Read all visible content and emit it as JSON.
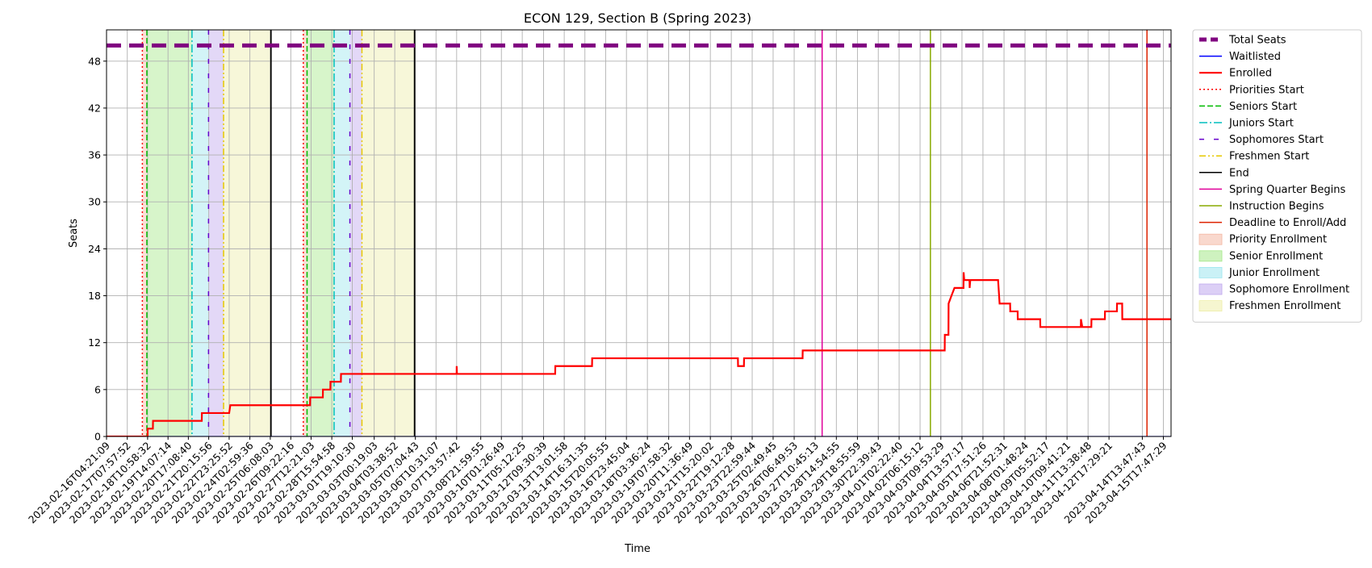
{
  "chart_data": {
    "type": "line",
    "title": "ECON 129, Section B (Spring 2023)",
    "xlabel": "Time",
    "ylabel": "Seats",
    "ylim": [
      0,
      52
    ],
    "yticks": [
      0,
      6,
      12,
      18,
      24,
      30,
      36,
      42,
      48
    ],
    "grid": true,
    "legend_position": "outside-right",
    "x_start": "2023-02-16T04:21:09",
    "x_end": "2023-04-16T04:00:00",
    "xticks": [
      "2023-02-16T04:21:09",
      "2023-02-17T07:57:52",
      "2023-02-18T10:58:32",
      "2023-02-19T14:07:14",
      "2023-02-20T17:08:40",
      "2023-02-21T20:15:56",
      "2023-02-22T23:25:52",
      "2023-02-24T02:59:36",
      "2023-02-25T06:08:03",
      "2023-02-26T09:22:16",
      "2023-02-27T12:21:03",
      "2023-02-28T15:54:58",
      "2023-03-01T19:10:30",
      "2023-03-03T00:19:03",
      "2023-03-04T03:38:52",
      "2023-03-05T07:04:43",
      "2023-03-06T10:31:07",
      "2023-03-07T13:57:42",
      "2023-03-08T21:59:55",
      "2023-03-10T01:26:49",
      "2023-03-11T05:12:25",
      "2023-03-12T09:30:39",
      "2023-03-13T13:01:58",
      "2023-03-14T16:31:35",
      "2023-03-15T20:05:55",
      "2023-03-16T23:45:04",
      "2023-03-18T03:36:24",
      "2023-03-19T07:58:32",
      "2023-03-20T11:36:49",
      "2023-03-21T15:20:02",
      "2023-03-22T19:12:28",
      "2023-03-23T22:59:44",
      "2023-03-25T02:49:45",
      "2023-03-26T06:49:53",
      "2023-03-27T10:45:13",
      "2023-03-28T14:54:55",
      "2023-03-29T18:55:59",
      "2023-03-30T22:39:43",
      "2023-04-01T02:22:40",
      "2023-04-02T06:15:12",
      "2023-04-03T09:53:29",
      "2023-04-04T13:57:17",
      "2023-04-05T17:51:26",
      "2023-04-06T21:52:31",
      "2023-04-08T01:48:24",
      "2023-04-09T05:52:17",
      "2023-04-10T09:41:21",
      "2023-04-11T13:38:48",
      "2023-04-12T17:29:21",
      "2023-04-14T13:47:43",
      "2023-04-15T17:47:29"
    ],
    "series": [
      {
        "name": "Total Seats",
        "color": "#800080",
        "style": "thick-dashed",
        "points": [
          [
            "2023-02-16T04:21:09",
            50
          ],
          [
            "2023-04-16T04:00:00",
            50
          ]
        ]
      },
      {
        "name": "Waitlisted",
        "color": "#0000ff",
        "style": "solid",
        "points": [
          [
            "2023-02-16T04:21:09",
            0
          ],
          [
            "2023-04-16T04:00:00",
            0
          ]
        ]
      },
      {
        "name": "Enrolled",
        "color": "#ff0000",
        "style": "solid-thick",
        "points": [
          [
            "2023-02-16T04:21:09",
            0
          ],
          [
            "2023-02-18T10:58:32",
            0
          ],
          [
            "2023-02-18T11:00:00",
            1
          ],
          [
            "2023-02-18T18:00:00",
            1
          ],
          [
            "2023-02-18T18:10:00",
            2
          ],
          [
            "2023-02-21T11:00:00",
            2
          ],
          [
            "2023-02-21T11:10:00",
            3
          ],
          [
            "2023-02-22T23:25:52",
            3
          ],
          [
            "2023-02-23T01:00:00",
            4
          ],
          [
            "2023-02-27T11:00:00",
            4
          ],
          [
            "2023-02-27T11:10:00",
            5
          ],
          [
            "2023-02-28T04:00:00",
            5
          ],
          [
            "2023-02-28T04:10:00",
            6
          ],
          [
            "2023-02-28T14:00:00",
            6
          ],
          [
            "2023-02-28T14:10:00",
            7
          ],
          [
            "2023-03-01T04:00:00",
            7
          ],
          [
            "2023-03-01T04:10:00",
            8
          ],
          [
            "2023-03-07T13:57:42",
            8
          ],
          [
            "2023-03-07T14:00:00",
            9
          ],
          [
            "2023-03-07T14:20:00",
            8
          ],
          [
            "2023-03-13T01:00:00",
            8
          ],
          [
            "2023-03-13T01:10:00",
            9
          ],
          [
            "2023-03-15T02:00:00",
            9
          ],
          [
            "2023-03-15T02:10:00",
            10
          ],
          [
            "2023-03-23T04:00:00",
            10
          ],
          [
            "2023-03-23T04:10:00",
            9
          ],
          [
            "2023-03-23T12:00:00",
            9
          ],
          [
            "2023-03-23T12:10:00",
            10
          ],
          [
            "2023-03-26T18:00:00",
            10
          ],
          [
            "2023-03-26T18:10:00",
            11
          ],
          [
            "2023-04-03T15:00:00",
            11
          ],
          [
            "2023-04-03T15:10:00",
            13
          ],
          [
            "2023-04-03T20:00:00",
            13
          ],
          [
            "2023-04-03T20:10:00",
            17
          ],
          [
            "2023-04-04T00:00:00",
            18
          ],
          [
            "2023-04-04T04:00:00",
            19
          ],
          [
            "2023-04-04T16:00:00",
            19
          ],
          [
            "2023-04-04T16:10:00",
            21
          ],
          [
            "2023-04-04T17:00:00",
            20
          ],
          [
            "2023-04-05T00:00:00",
            20
          ],
          [
            "2023-04-05T00:10:00",
            19
          ],
          [
            "2023-04-05T01:00:00",
            20
          ],
          [
            "2023-04-06T14:00:00",
            20
          ],
          [
            "2023-04-06T16:00:00",
            17
          ],
          [
            "2023-04-07T06:00:00",
            17
          ],
          [
            "2023-04-07T06:10:00",
            16
          ],
          [
            "2023-04-07T16:00:00",
            16
          ],
          [
            "2023-04-07T16:10:00",
            15
          ],
          [
            "2023-04-08T22:00:00",
            15
          ],
          [
            "2023-04-08T22:10:00",
            14
          ],
          [
            "2023-04-11T04:00:00",
            14
          ],
          [
            "2023-04-11T04:10:00",
            15
          ],
          [
            "2023-04-11T06:00:00",
            14
          ],
          [
            "2023-04-11T18:00:00",
            14
          ],
          [
            "2023-04-11T18:10:00",
            15
          ],
          [
            "2023-04-12T12:00:00",
            15
          ],
          [
            "2023-04-12T12:10:00",
            16
          ],
          [
            "2023-04-13T04:00:00",
            16
          ],
          [
            "2023-04-13T04:10:00",
            17
          ],
          [
            "2023-04-13T11:00:00",
            17
          ],
          [
            "2023-04-13T11:10:00",
            15
          ],
          [
            "2023-04-16T04:00:00",
            15
          ]
        ]
      }
    ],
    "event_lines": [
      {
        "name": "Priorities Start",
        "color": "#ff0000",
        "style": "dotted",
        "times": [
          "2023-02-18T04:00:00",
          "2023-02-27T02:00:00"
        ]
      },
      {
        "name": "Seniors Start",
        "color": "#00bb00",
        "style": "dashed",
        "times": [
          "2023-02-18T10:00:00",
          "2023-02-27T07:00:00"
        ]
      },
      {
        "name": "Juniors Start",
        "color": "#00bfbf",
        "style": "dashdot",
        "times": [
          "2023-02-20T22:00:00",
          "2023-02-28T19:00:00"
        ]
      },
      {
        "name": "Sophomores Start",
        "color": "#6600cc",
        "style": "loosely-dashed",
        "times": [
          "2023-02-21T20:00:00",
          "2023-03-01T16:00:00"
        ]
      },
      {
        "name": "Freshmen Start",
        "color": "#e6c800",
        "style": "dashdotdot",
        "times": [
          "2023-02-22T16:00:00",
          "2023-03-02T08:00:00"
        ]
      },
      {
        "name": "End",
        "color": "#000000",
        "style": "solid",
        "times": [
          "2023-02-25T07:00:00",
          "2023-03-05T06:00:00"
        ]
      },
      {
        "name": "Spring Quarter Begins",
        "color": "#e0009a",
        "style": "solid",
        "times": [
          "2023-03-27T20:00:00"
        ]
      },
      {
        "name": "Instruction Begins",
        "color": "#88aa00",
        "style": "solid",
        "times": [
          "2023-04-02T20:00:00"
        ]
      },
      {
        "name": "Deadline to Enroll/Add",
        "color": "#dd2200",
        "style": "solid",
        "times": [
          "2023-04-14T20:00:00"
        ]
      }
    ],
    "spans": [
      {
        "name": "Priority Enrollment",
        "color": "#f4b8a4",
        "ranges": [
          [
            "2023-02-18T04:00:00",
            "2023-02-18T10:00:00"
          ],
          [
            "2023-02-27T02:00:00",
            "2023-02-27T07:00:00"
          ]
        ]
      },
      {
        "name": "Senior Enrollment",
        "color": "#a6e88a",
        "ranges": [
          [
            "2023-02-18T10:00:00",
            "2023-02-20T22:00:00"
          ],
          [
            "2023-02-27T07:00:00",
            "2023-02-28T19:00:00"
          ]
        ]
      },
      {
        "name": "Junior Enrollment",
        "color": "#9ee6ee",
        "ranges": [
          [
            "2023-02-20T22:00:00",
            "2023-02-21T20:00:00"
          ],
          [
            "2023-02-28T19:00:00",
            "2023-03-01T16:00:00"
          ]
        ]
      },
      {
        "name": "Sophomore Enrollment",
        "color": "#c0a8ee",
        "ranges": [
          [
            "2023-02-21T20:00:00",
            "2023-02-22T16:00:00"
          ],
          [
            "2023-03-01T16:00:00",
            "2023-03-02T08:00:00"
          ]
        ]
      },
      {
        "name": "Freshmen Enrollment",
        "color": "#eeeeaa",
        "ranges": [
          [
            "2023-02-22T16:00:00",
            "2023-02-25T07:00:00"
          ],
          [
            "2023-03-02T08:00:00",
            "2023-03-05T06:00:00"
          ]
        ]
      }
    ],
    "legend": [
      {
        "label": "Total Seats",
        "kind": "line",
        "color": "#800080",
        "style": "thick-dashed"
      },
      {
        "label": "Waitlisted",
        "kind": "line",
        "color": "#0000ff",
        "style": "solid"
      },
      {
        "label": "Enrolled",
        "kind": "line",
        "color": "#ff0000",
        "style": "solid-thick"
      },
      {
        "label": "Priorities Start",
        "kind": "line",
        "color": "#ff0000",
        "style": "dotted"
      },
      {
        "label": "Seniors Start",
        "kind": "line",
        "color": "#00bb00",
        "style": "dashed"
      },
      {
        "label": "Juniors Start",
        "kind": "line",
        "color": "#00bfbf",
        "style": "dashdot"
      },
      {
        "label": "Sophomores Start",
        "kind": "line",
        "color": "#6600cc",
        "style": "loosely-dashed"
      },
      {
        "label": "Freshmen Start",
        "kind": "line",
        "color": "#e6c800",
        "style": "dashdotdot"
      },
      {
        "label": "End",
        "kind": "line",
        "color": "#000000",
        "style": "solid"
      },
      {
        "label": "Spring Quarter Begins",
        "kind": "line",
        "color": "#e0009a",
        "style": "solid"
      },
      {
        "label": "Instruction Begins",
        "kind": "line",
        "color": "#88aa00",
        "style": "solid"
      },
      {
        "label": "Deadline to Enroll/Add",
        "kind": "line",
        "color": "#dd2200",
        "style": "solid"
      },
      {
        "label": "Priority Enrollment",
        "kind": "patch",
        "color": "#f4b8a4"
      },
      {
        "label": "Senior Enrollment",
        "kind": "patch",
        "color": "#a6e88a"
      },
      {
        "label": "Junior Enrollment",
        "kind": "patch",
        "color": "#9ee6ee"
      },
      {
        "label": "Sophomore Enrollment",
        "kind": "patch",
        "color": "#c0a8ee"
      },
      {
        "label": "Freshmen Enrollment",
        "kind": "patch",
        "color": "#eeeeaa"
      }
    ]
  }
}
